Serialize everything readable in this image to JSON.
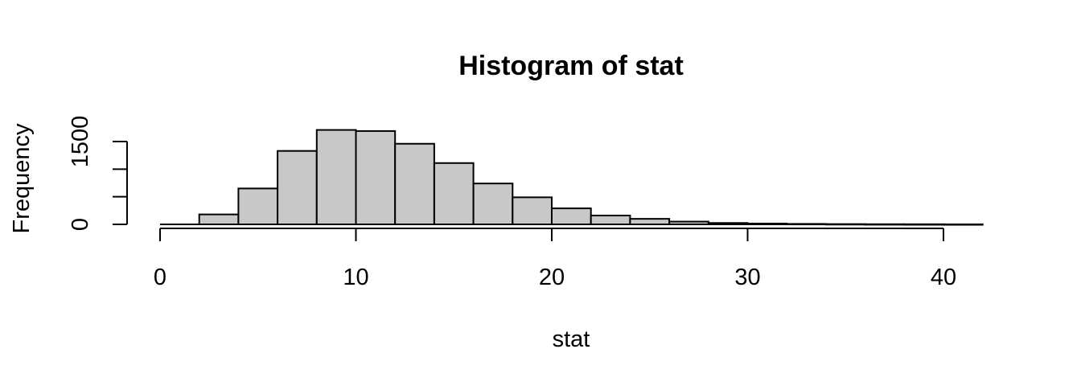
{
  "chart_data": {
    "type": "bar",
    "title": "Histogram of stat",
    "xlabel": "stat",
    "ylabel": "Frequency",
    "bins": [
      {
        "x0": 0,
        "x1": 2,
        "count": 0
      },
      {
        "x0": 2,
        "x1": 4,
        "count": 180
      },
      {
        "x0": 4,
        "x1": 6,
        "count": 650
      },
      {
        "x0": 6,
        "x1": 8,
        "count": 1330
      },
      {
        "x0": 8,
        "x1": 10,
        "count": 1710
      },
      {
        "x0": 10,
        "x1": 12,
        "count": 1690
      },
      {
        "x0": 12,
        "x1": 14,
        "count": 1460
      },
      {
        "x0": 14,
        "x1": 16,
        "count": 1110
      },
      {
        "x0": 16,
        "x1": 18,
        "count": 740
      },
      {
        "x0": 18,
        "x1": 20,
        "count": 490
      },
      {
        "x0": 20,
        "x1": 22,
        "count": 290
      },
      {
        "x0": 22,
        "x1": 24,
        "count": 160
      },
      {
        "x0": 24,
        "x1": 26,
        "count": 100
      },
      {
        "x0": 26,
        "x1": 28,
        "count": 50
      },
      {
        "x0": 28,
        "x1": 30,
        "count": 25
      },
      {
        "x0": 30,
        "x1": 32,
        "count": 15
      },
      {
        "x0": 32,
        "x1": 34,
        "count": 8
      },
      {
        "x0": 34,
        "x1": 36,
        "count": 5
      },
      {
        "x0": 36,
        "x1": 38,
        "count": 3
      },
      {
        "x0": 38,
        "x1": 40,
        "count": 2
      },
      {
        "x0": 40,
        "x1": 42,
        "count": 1
      }
    ],
    "xlim": [
      0,
      42
    ],
    "ylim": [
      0,
      1750
    ],
    "x_ticks": [
      0,
      10,
      20,
      30,
      40
    ],
    "x_tick_labels": [
      "0",
      "10",
      "20",
      "30",
      "40"
    ],
    "y_ticks": [
      0,
      500,
      1000,
      1500
    ],
    "y_tick_labels": [
      "0",
      "",
      "",
      "1500"
    ],
    "bar_fill": "#c8c8c8",
    "grid": false,
    "legend": "none"
  }
}
